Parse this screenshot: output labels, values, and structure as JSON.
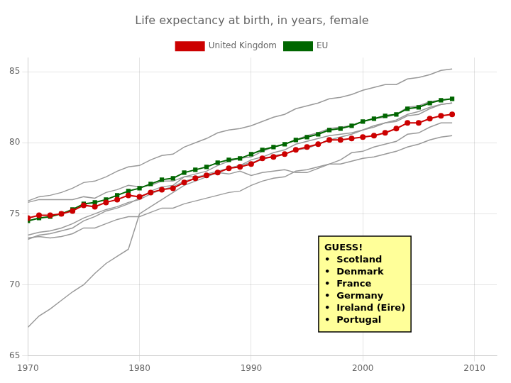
{
  "chart_data": {
    "type": "line",
    "title": "Life expectancy at birth, in years, female",
    "x": [
      1970,
      1971,
      1972,
      1973,
      1974,
      1975,
      1976,
      1977,
      1978,
      1979,
      1980,
      1981,
      1982,
      1983,
      1984,
      1985,
      1986,
      1987,
      1988,
      1989,
      1990,
      1991,
      1992,
      1993,
      1994,
      1995,
      1996,
      1997,
      1998,
      1999,
      2000,
      2001,
      2002,
      2003,
      2004,
      2005,
      2006,
      2007,
      2008
    ],
    "xlim": [
      1970,
      2012
    ],
    "xticks": [
      1970,
      1980,
      1990,
      2000,
      2010
    ],
    "ylim": [
      65,
      86
    ],
    "yticks": [
      65,
      70,
      75,
      80,
      85
    ],
    "grid": true,
    "legend": "top",
    "series": [
      {
        "color": "#999999",
        "values": [
          75.9,
          76.2,
          76.3,
          76.5,
          76.8,
          77.2,
          77.3,
          77.6,
          78.0,
          78.3,
          78.4,
          78.8,
          79.1,
          79.2,
          79.7,
          80.0,
          80.3,
          80.7,
          80.9,
          81.0,
          81.2,
          81.5,
          81.8,
          82.0,
          82.4,
          82.6,
          82.8,
          83.1,
          83.2,
          83.4,
          83.7,
          83.9,
          84.1,
          84.1,
          84.5,
          84.6,
          84.8,
          85.1,
          85.2
        ]
      },
      {
        "color": "#999999",
        "values": [
          73.2,
          73.5,
          73.6,
          73.8,
          74.0,
          74.5,
          74.8,
          75.2,
          75.4,
          75.7,
          76.1,
          76.6,
          76.9,
          77.0,
          77.6,
          77.8,
          78.0,
          78.4,
          78.7,
          78.9,
          79.0,
          79.4,
          79.7,
          79.9,
          80.2,
          80.5,
          80.7,
          81.0,
          81.1,
          81.2,
          81.5,
          81.7,
          81.8,
          82.0,
          82.5,
          82.6,
          82.9,
          83.0,
          83.1
        ]
      },
      {
        "color": "#999999",
        "values": [
          75.8,
          76.0,
          76.0,
          76.0,
          76.0,
          76.2,
          76.1,
          76.5,
          76.7,
          77.0,
          76.9,
          77.0,
          77.3,
          77.3,
          77.6,
          77.6,
          77.7,
          77.9,
          77.8,
          78.0,
          77.7,
          77.9,
          78.0,
          78.1,
          77.9,
          77.9,
          78.2,
          78.5,
          78.8,
          79.3,
          79.4,
          79.7,
          79.9,
          80.1,
          80.6,
          80.7,
          81.1,
          81.4,
          81.4
        ]
      },
      {
        "color": "#999999",
        "values": [
          73.5,
          73.7,
          73.8,
          74.0,
          74.3,
          74.7,
          75.0,
          75.3,
          75.5,
          75.8,
          76.0,
          76.4,
          76.7,
          76.9,
          77.3,
          77.5,
          77.8,
          78.0,
          78.2,
          78.4,
          78.8,
          79.0,
          79.3,
          79.5,
          79.9,
          80.1,
          80.3,
          80.5,
          80.6,
          80.7,
          80.9,
          81.2,
          81.4,
          81.6,
          82.0,
          82.2,
          82.5,
          82.7,
          82.8
        ]
      },
      {
        "color": "#999999",
        "values": [
          73.3,
          73.4,
          73.3,
          73.4,
          73.6,
          74.0,
          74.0,
          74.3,
          74.6,
          74.8,
          74.8,
          75.1,
          75.4,
          75.4,
          75.7,
          75.9,
          76.1,
          76.3,
          76.5,
          76.6,
          77.0,
          77.3,
          77.5,
          77.6,
          78.0,
          78.1,
          78.3,
          78.5,
          78.5,
          78.7,
          78.9,
          79.0,
          79.2,
          79.4,
          79.7,
          79.9,
          80.2,
          80.4,
          80.5
        ]
      },
      {
        "color": "#999999",
        "values": [
          67.0,
          67.8,
          68.3,
          68.9,
          69.5,
          70.0,
          70.8,
          71.5,
          72.0,
          72.5,
          75.0,
          75.5,
          76.0,
          76.5,
          77.0,
          77.3,
          77.6,
          77.9,
          78.2,
          78.4,
          78.6,
          78.8,
          79.1,
          79.2,
          79.5,
          79.6,
          79.9,
          80.2,
          80.4,
          80.6,
          80.9,
          81.1,
          81.4,
          81.5,
          81.9,
          82.0,
          82.4,
          82.7,
          82.8
        ]
      },
      {
        "name": "United Kingdom",
        "color": "#cc0000",
        "marker": "circle",
        "values": [
          74.7,
          74.9,
          74.9,
          75.0,
          75.2,
          75.6,
          75.5,
          75.8,
          76.0,
          76.3,
          76.2,
          76.5,
          76.7,
          76.8,
          77.2,
          77.5,
          77.7,
          77.9,
          78.2,
          78.3,
          78.5,
          78.9,
          79.0,
          79.2,
          79.5,
          79.7,
          79.9,
          80.2,
          80.2,
          80.3,
          80.4,
          80.5,
          80.7,
          81.0,
          81.4,
          81.4,
          81.7,
          81.9,
          82.0
        ]
      },
      {
        "name": "EU",
        "color": "#006600",
        "marker": "square",
        "values": [
          74.5,
          74.7,
          74.8,
          75.0,
          75.3,
          75.7,
          75.8,
          76.0,
          76.3,
          76.6,
          76.8,
          77.1,
          77.4,
          77.5,
          77.9,
          78.1,
          78.3,
          78.6,
          78.8,
          78.9,
          79.2,
          79.5,
          79.7,
          79.9,
          80.2,
          80.4,
          80.6,
          80.9,
          81.0,
          81.2,
          81.5,
          81.7,
          81.9,
          82.0,
          82.4,
          82.5,
          82.8,
          83.0,
          83.1
        ]
      }
    ],
    "annotations": [
      {
        "text": [
          "GUESS!",
          "•  Scotland",
          "•  Denmark",
          "•  France",
          "•  Germany",
          "•  Ireland (Eire)",
          "•  Portugal"
        ],
        "color": "#ffff99"
      }
    ]
  }
}
